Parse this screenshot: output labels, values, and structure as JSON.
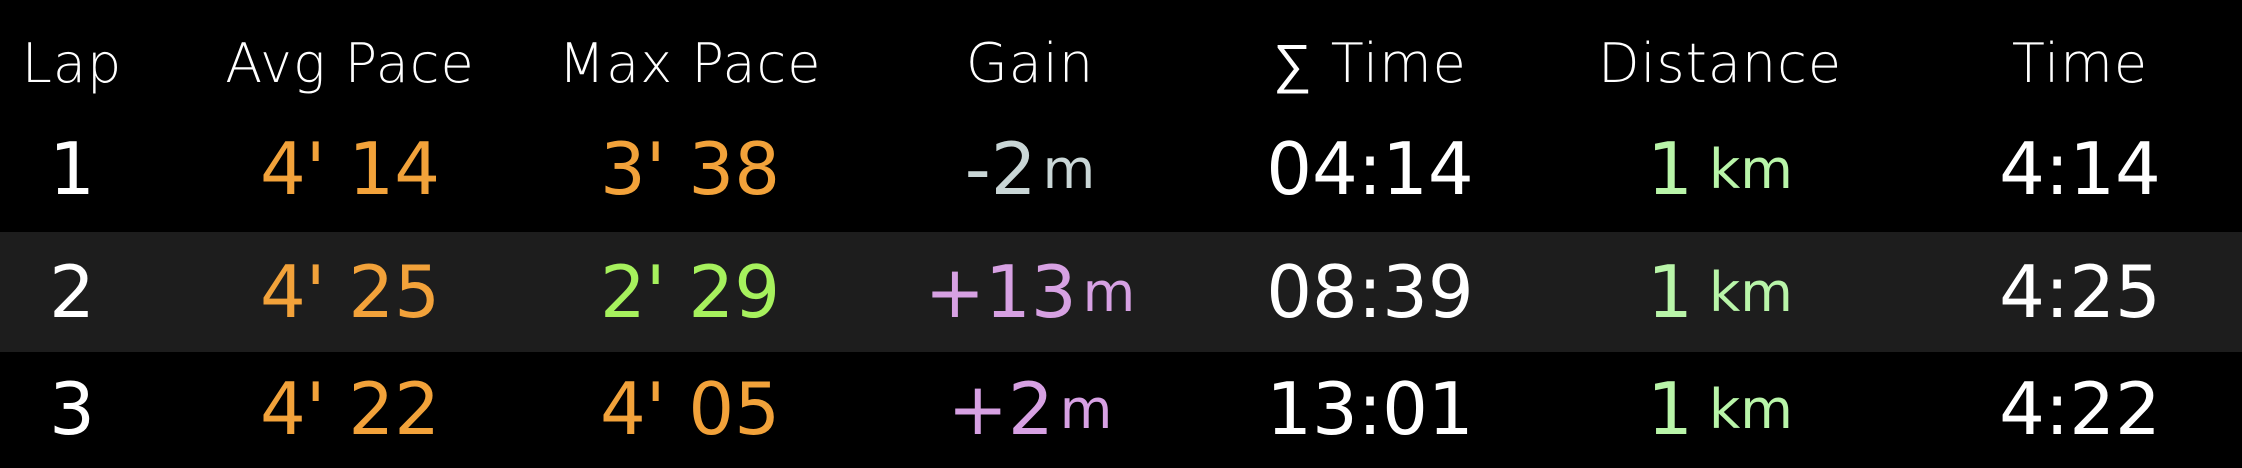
{
  "colors": {
    "background": "#000000",
    "alt_row": "#1d1d1d",
    "text_white": "#ffffff",
    "pace_orange": "#f2a23a",
    "pace_green": "#a6f15d",
    "gain_neutral": "#c9d6d6",
    "gain_positive": "#d7a1e3",
    "distance_green": "#b9f5a9"
  },
  "headers": {
    "lap": "Lap",
    "avg_pace": "Avg Pace",
    "max_pace": "Max Pace",
    "gain": "Gain",
    "sum_time": "∑ Time",
    "distance": "Distance",
    "time": "Time"
  },
  "rows": [
    {
      "lap": "1",
      "avg_pace": "4' 14",
      "max_pace": "3' 38",
      "gain_value": "-2",
      "gain_unit": "m",
      "sum_time": "04:14",
      "distance_value": "1",
      "distance_unit": "km",
      "time": "4:14"
    },
    {
      "lap": "2",
      "avg_pace": "4' 25",
      "max_pace": "2' 29",
      "gain_value": "+13",
      "gain_unit": "m",
      "sum_time": "08:39",
      "distance_value": "1",
      "distance_unit": "km",
      "time": "4:25"
    },
    {
      "lap": "3",
      "avg_pace": "4' 22",
      "max_pace": "4' 05",
      "gain_value": "+2",
      "gain_unit": "m",
      "sum_time": "13:01",
      "distance_value": "1",
      "distance_unit": "km",
      "time": "4:22"
    }
  ]
}
